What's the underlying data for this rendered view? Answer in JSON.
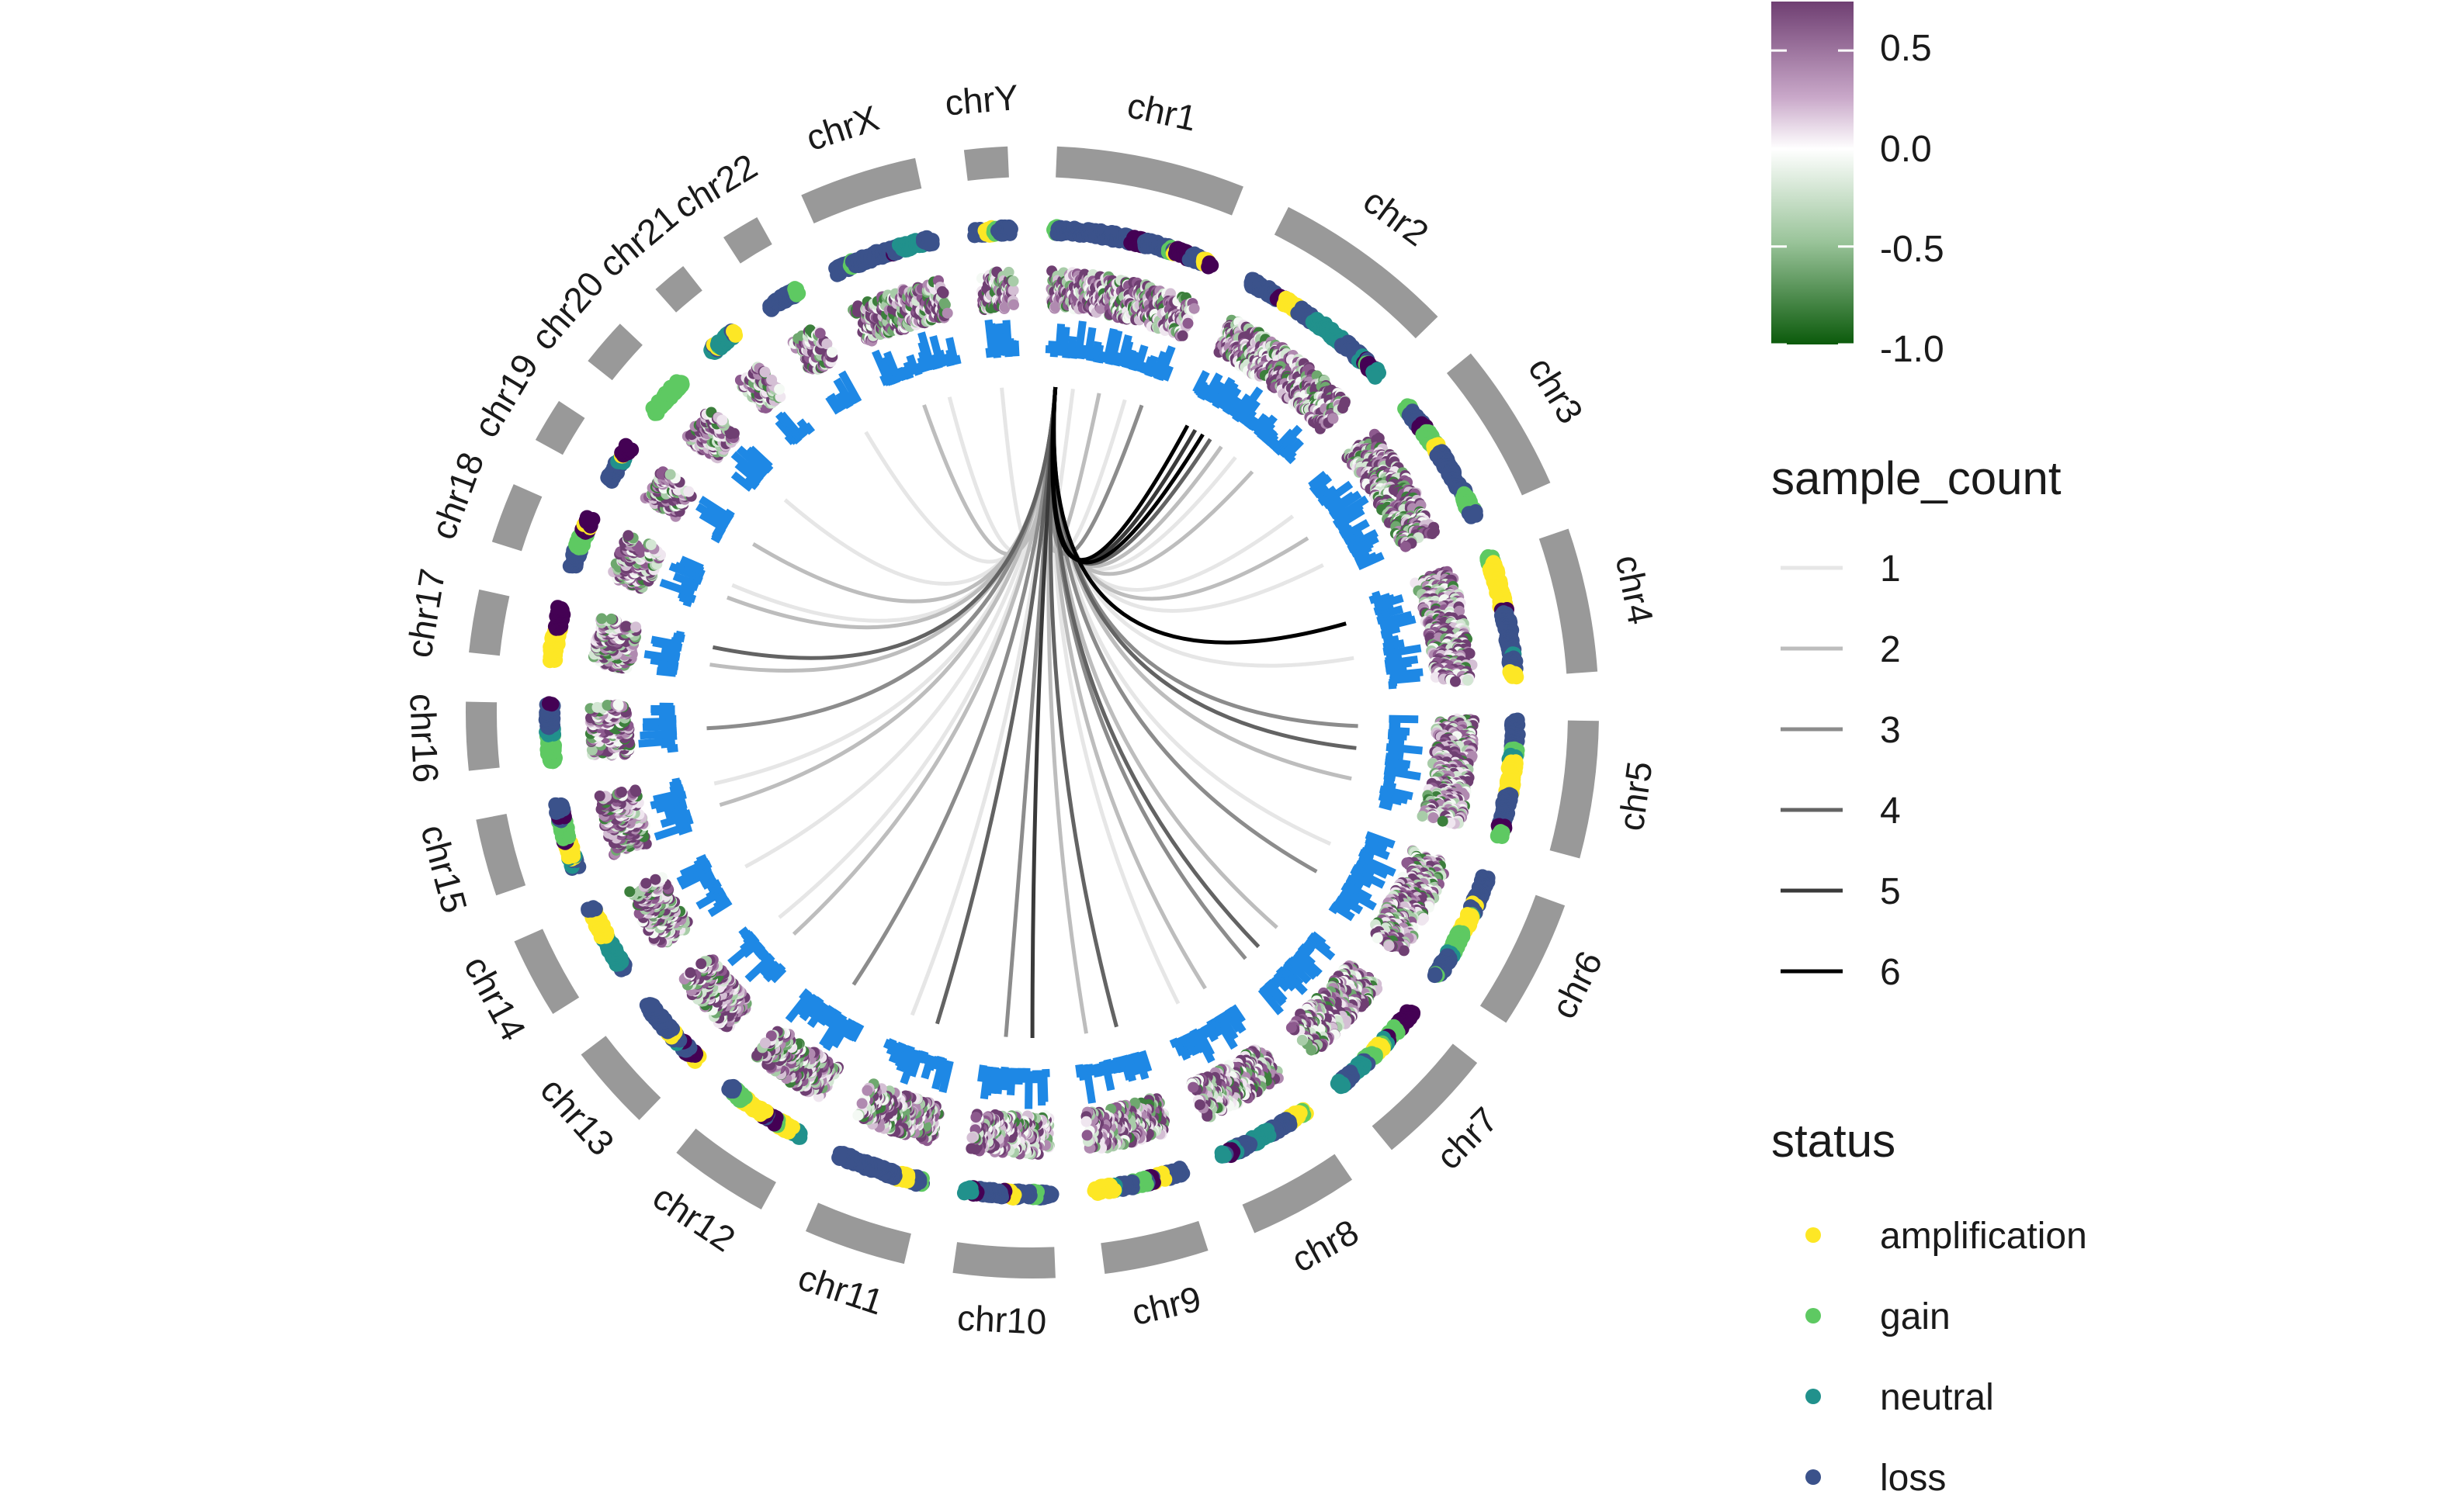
{
  "chart_data": {
    "type": "circos",
    "chromosomes": [
      "chr1",
      "chr2",
      "chr3",
      "chr4",
      "chr5",
      "chr6",
      "chr7",
      "chr8",
      "chr9",
      "chr10",
      "chr11",
      "chr12",
      "chr13",
      "chr14",
      "chr15",
      "chr16",
      "chr17",
      "chr18",
      "chr19",
      "chr20",
      "chr21",
      "chr22",
      "chrX",
      "chrY"
    ],
    "chromosome_lengths_mb": [
      249,
      242,
      198,
      190,
      181,
      171,
      159,
      145,
      138,
      134,
      135,
      133,
      114,
      107,
      102,
      90,
      83,
      80,
      59,
      64,
      47,
      51,
      156,
      57
    ],
    "tracks": {
      "status_points": {
        "categories": [
          "amplification",
          "gain",
          "neutral",
          "loss"
        ],
        "colors": {
          "amplification": "#fde725",
          "gain": "#5ec962",
          "neutral": "#21918c",
          "loss": "#3b528b",
          "extra_dark": "#440154"
        }
      },
      "value_heatmap": {
        "legend_ticks": [
          "0.5",
          "0.0",
          "-0.5",
          "-1.0"
        ],
        "tick_values": [
          0.5,
          0.0,
          -0.5,
          -1.0
        ],
        "range": [
          -1.0,
          0.75
        ],
        "colors": {
          "high": "#6f3f72",
          "mid": "#ffffff",
          "low": "#0b5a0b"
        }
      },
      "bar_track": {
        "color": "#1e88e5"
      },
      "links": {
        "description": "links from chr1 (~20 Mb) to loci across the genome, shaded by sample_count",
        "source_chrom": "chr1",
        "source_pos_mb": 20,
        "targets": [
          {
            "chrom": "chr1",
            "pos": 60,
            "count": 1
          },
          {
            "chrom": "chr1",
            "pos": 120,
            "count": 2
          },
          {
            "chrom": "chr1",
            "pos": 180,
            "count": 1
          },
          {
            "chrom": "chr1",
            "pos": 220,
            "count": 3
          },
          {
            "chrom": "chr2",
            "pos": 20,
            "count": 6
          },
          {
            "chrom": "chr2",
            "pos": 40,
            "count": 5
          },
          {
            "chrom": "chr2",
            "pos": 60,
            "count": 6
          },
          {
            "chrom": "chr2",
            "pos": 80,
            "count": 4
          },
          {
            "chrom": "chr2",
            "pos": 110,
            "count": 2
          },
          {
            "chrom": "chr2",
            "pos": 150,
            "count": 1
          },
          {
            "chrom": "chr2",
            "pos": 200,
            "count": 2
          },
          {
            "chrom": "chr3",
            "pos": 30,
            "count": 1
          },
          {
            "chrom": "chr3",
            "pos": 90,
            "count": 2
          },
          {
            "chrom": "chr3",
            "pos": 160,
            "count": 1
          },
          {
            "chrom": "chr4",
            "pos": 40,
            "count": 6
          },
          {
            "chrom": "chr4",
            "pos": 120,
            "count": 1
          },
          {
            "chrom": "chr5",
            "pos": 20,
            "count": 3
          },
          {
            "chrom": "chr5",
            "pos": 70,
            "count": 4
          },
          {
            "chrom": "chr5",
            "pos": 140,
            "count": 2
          },
          {
            "chrom": "chr6",
            "pos": 50,
            "count": 1
          },
          {
            "chrom": "chr6",
            "pos": 120,
            "count": 3
          },
          {
            "chrom": "chr7",
            "pos": 40,
            "count": 2
          },
          {
            "chrom": "chr7",
            "pos": 100,
            "count": 4
          },
          {
            "chrom": "chr7",
            "pos": 140,
            "count": 3
          },
          {
            "chrom": "chr8",
            "pos": 30,
            "count": 2
          },
          {
            "chrom": "chr8",
            "pos": 100,
            "count": 1
          },
          {
            "chrom": "chr9",
            "pos": 40,
            "count": 4
          },
          {
            "chrom": "chr9",
            "pos": 110,
            "count": 2
          },
          {
            "chrom": "chr10",
            "pos": 30,
            "count": 5
          },
          {
            "chrom": "chr10",
            "pos": 90,
            "count": 3
          },
          {
            "chrom": "chr11",
            "pos": 50,
            "count": 4
          },
          {
            "chrom": "chr11",
            "pos": 110,
            "count": 1
          },
          {
            "chrom": "chr12",
            "pos": 60,
            "count": 3
          },
          {
            "chrom": "chr13",
            "pos": 40,
            "count": 2
          },
          {
            "chrom": "chr13",
            "pos": 90,
            "count": 1
          },
          {
            "chrom": "chr14",
            "pos": 50,
            "count": 1
          },
          {
            "chrom": "chr15",
            "pos": 30,
            "count": 2
          },
          {
            "chrom": "chr15",
            "pos": 80,
            "count": 1
          },
          {
            "chrom": "chr16",
            "pos": 40,
            "count": 3
          },
          {
            "chrom": "chr17",
            "pos": 30,
            "count": 2
          },
          {
            "chrom": "chr17",
            "pos": 70,
            "count": 4
          },
          {
            "chrom": "chr18",
            "pos": 40,
            "count": 2
          },
          {
            "chrom": "chr18",
            "pos": 70,
            "count": 1
          },
          {
            "chrom": "chr19",
            "pos": 30,
            "count": 2
          },
          {
            "chrom": "chr20",
            "pos": 30,
            "count": 1
          },
          {
            "chrom": "chr22",
            "pos": 30,
            "count": 1
          },
          {
            "chrom": "chrX",
            "pos": 60,
            "count": 2
          },
          {
            "chrom": "chrX",
            "pos": 120,
            "count": 1
          },
          {
            "chrom": "chrY",
            "pos": 20,
            "count": 1
          }
        ]
      }
    },
    "legends": {
      "colorbar": {
        "title": "",
        "ticks": [
          "0.5",
          "0.0",
          "-0.5",
          "-1.0"
        ]
      },
      "sample_count": {
        "title": "sample_count",
        "labels": [
          "1",
          "2",
          "3",
          "4",
          "5",
          "6"
        ],
        "colors": [
          "#e6e6e6",
          "#bdbdbd",
          "#8c8c8c",
          "#636363",
          "#3a3a3a",
          "#000000"
        ]
      },
      "status": {
        "title": "status",
        "labels": [
          "amplification",
          "gain",
          "neutral",
          "loss"
        ],
        "colors": [
          "#fde725",
          "#5ec962",
          "#21918c",
          "#3b528b"
        ]
      }
    }
  }
}
